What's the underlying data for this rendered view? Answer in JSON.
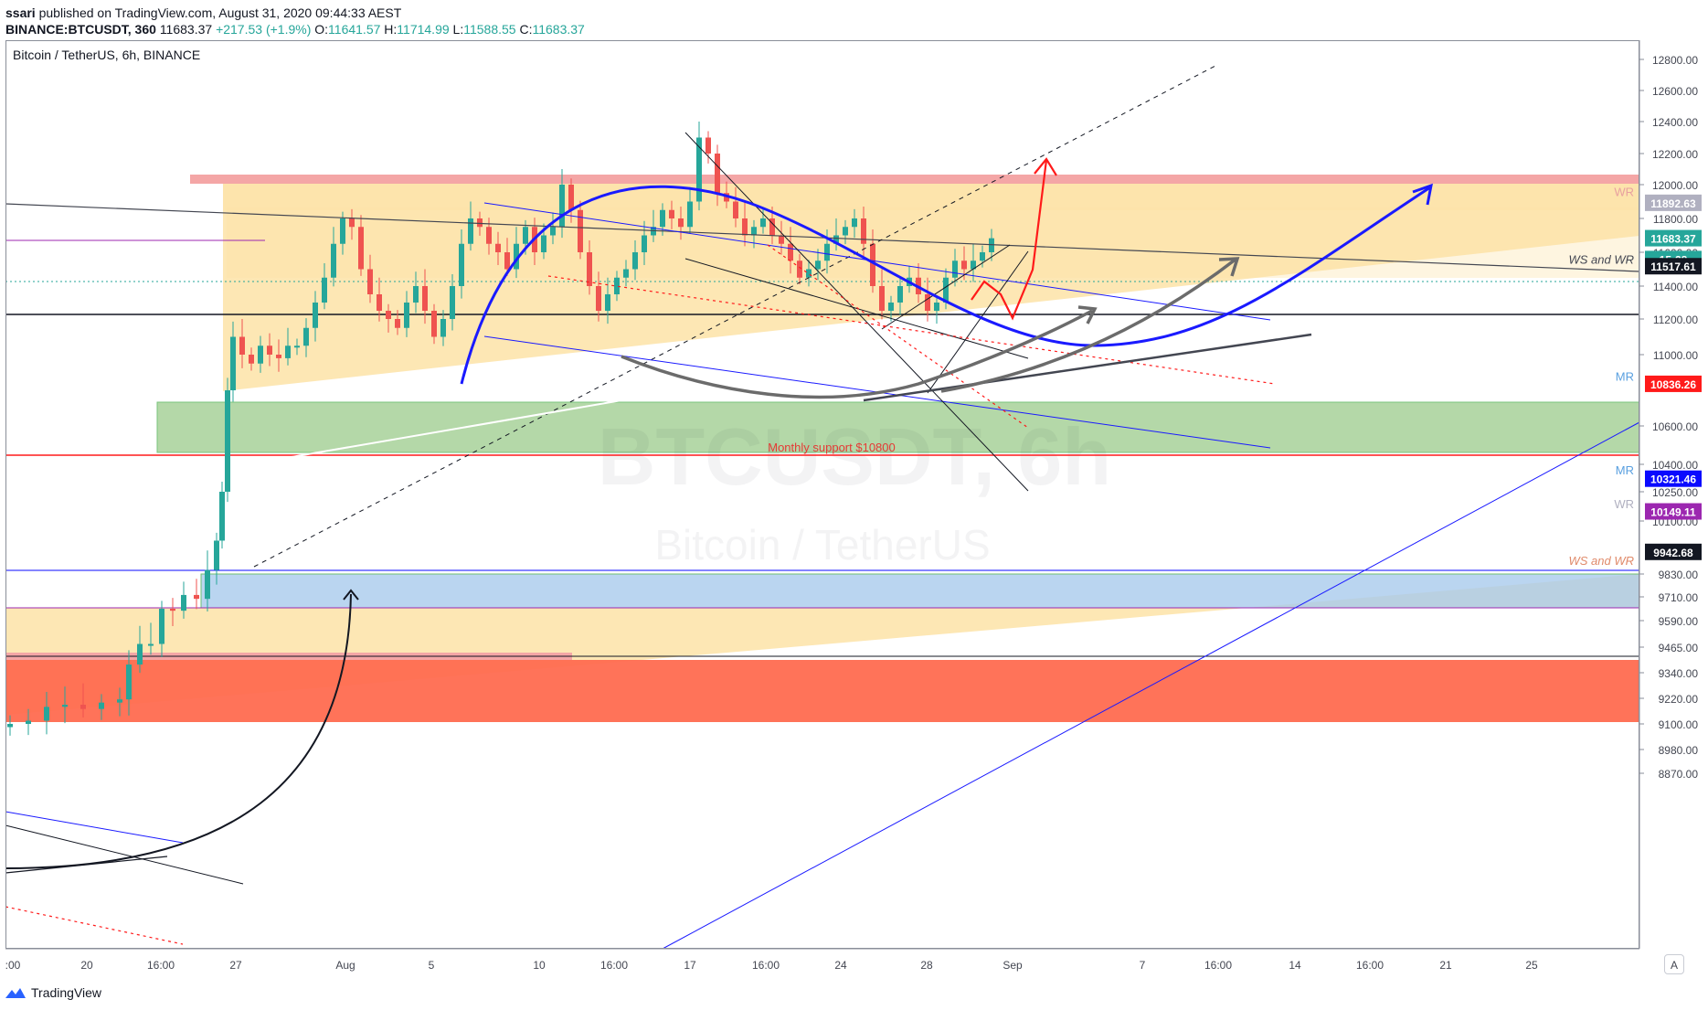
{
  "header": {
    "author": "ssari",
    "published_text": "published on TradingView.com, August 31, 2020 09:44:33 AEST",
    "symbol": "BINANCE:BTCUSDT, 360",
    "last": "11683.37",
    "change": "+217.53 (+1.9%)",
    "o_label": "O:",
    "o": "11641.57",
    "h_label": "H:",
    "h": "11714.99",
    "l_label": "L:",
    "l": "11588.55",
    "c_label": "C:",
    "c": "11683.37"
  },
  "legend_title": "Bitcoin / TetherUS, 6h, BINANCE",
  "watermark": {
    "line1": "BTCUSDT, 6h",
    "line2": "Bitcoin / TetherUS"
  },
  "footer_brand": "TradingView",
  "axis_button": "A",
  "colors": {
    "up": "#26a69a",
    "down": "#ef5350",
    "triangle": "#fde3a7",
    "green_zone": "#9ccc8c",
    "blue_zone": "#a9cbed",
    "red_zone": "#ff6b50",
    "pink_band": "#f4a6a6",
    "blue_curve": "#1a1aff",
    "arrow_red": "#ff1a1a"
  },
  "chart_data": {
    "type": "candlestick",
    "x_ticks": [
      ":00",
      "20",
      "16:00",
      "27",
      "Aug",
      "5",
      "10",
      "16:00",
      "17",
      "16:00",
      "24",
      "28",
      "Sep",
      "7",
      "16:00",
      "14",
      "16:00",
      "21",
      "25"
    ],
    "y_ticks": [
      "12800.00",
      "12600.00",
      "12400.00",
      "12200.00",
      "12000.00",
      "11800.00",
      "11600.00",
      "11400.00",
      "11200.00",
      "11000.00",
      "10600.00",
      "10400.00",
      "10250.00",
      "10100.00",
      "9830.00",
      "9710.00",
      "9590.00",
      "9465.00",
      "9340.00",
      "9220.00",
      "9100.00",
      "8980.00",
      "8870.00"
    ],
    "price_labels": [
      {
        "text": "11892.63",
        "value": 11892.63,
        "color": "#b0b0c0"
      },
      {
        "text": "11683.37",
        "value": 11683.37,
        "color": "#26a69a"
      },
      {
        "text": "15:28",
        "value": 11560,
        "color": "#26a69a"
      },
      {
        "text": "11517.61",
        "value": 11517.61,
        "color": "#131722"
      },
      {
        "text": "10836.26",
        "value": 10836.26,
        "color": "#ff1a1a"
      },
      {
        "text": "10321.46",
        "value": 10321.46,
        "color": "#0a0aff"
      },
      {
        "text": "10149.11",
        "value": 10149.11,
        "color": "#9c27b0"
      },
      {
        "text": "9942.68",
        "value": 9942.68,
        "color": "#131722"
      }
    ],
    "annotations": [
      {
        "text": "WR",
        "value": 11960,
        "color": "#e8a0a0"
      },
      {
        "text": "WS and WR",
        "value": 11560,
        "color": "#434651"
      },
      {
        "text": "MR",
        "value": 10880,
        "color": "#5aa0e0"
      },
      {
        "text": "MR",
        "value": 10370,
        "color": "#5aa0e0"
      },
      {
        "text": "WR",
        "value": 10190,
        "color": "#b0b0c0"
      },
      {
        "text": "WS and WR",
        "value": 9900,
        "color": "#e08a6a"
      }
    ],
    "zone_label": "Monthly support $10800",
    "last_price": 11683.37
  }
}
